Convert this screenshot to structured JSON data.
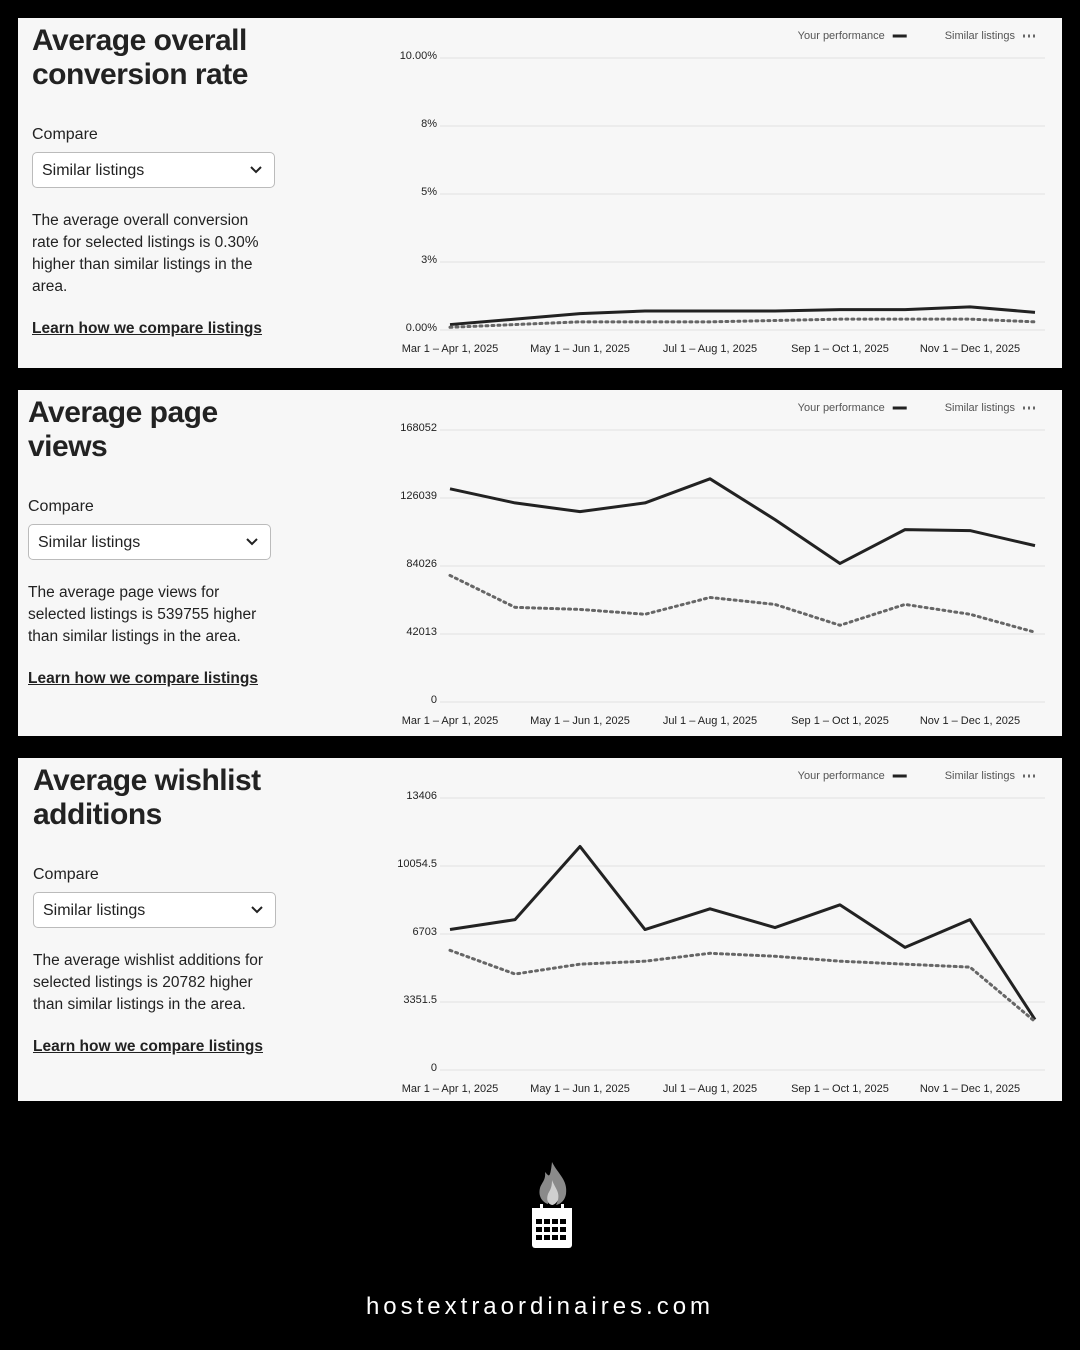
{
  "panels": [
    {
      "title": "Average overall conversion rate",
      "compare_label": "Compare",
      "select_value": "Similar listings",
      "description": "The average overall conversion rate for selected listings is 0.30% higher than similar listings in the area.",
      "link": "Learn how we compare listings"
    },
    {
      "title": "Average page views",
      "compare_label": "Compare",
      "select_value": "Similar listings",
      "description": "The average page views for selected listings is 539755 higher than similar listings in the area.",
      "link": "Learn how we compare listings"
    },
    {
      "title": "Average wishlist additions",
      "compare_label": "Compare",
      "select_value": "Similar listings",
      "description": "The average wishlist additions for selected listings is 20782 higher than similar listings in the area.",
      "link": "Learn how we compare listings"
    }
  ],
  "chart_data": [
    {
      "type": "line",
      "legend": "top-right",
      "grid": true,
      "categories": [
        "Mar 1 – Apr 1, 2025",
        null,
        "May 1 – Jun 1, 2025",
        null,
        "Jul 1 – Aug 1, 2025",
        null,
        "Sep 1 – Oct 1, 2025",
        null,
        "Nov 1 – Dec 1, 2025",
        null
      ],
      "series": [
        {
          "name": "Your performance",
          "color": "#222222",
          "line_style": "solid",
          "values": [
            0.2,
            0.4,
            0.6,
            0.7,
            0.7,
            0.7,
            0.75,
            0.75,
            0.85,
            0.65
          ]
        },
        {
          "name": "Similar listings",
          "color": "#666666",
          "line_style": "dotted",
          "values": [
            0.1,
            0.2,
            0.3,
            0.3,
            0.3,
            0.35,
            0.4,
            0.4,
            0.4,
            0.3
          ]
        }
      ],
      "ylim": [
        0,
        10
      ],
      "yticks": [
        {
          "value": 0,
          "label": "0.00%"
        },
        {
          "value": 2.5,
          "label": "3%"
        },
        {
          "value": 5,
          "label": "5%"
        },
        {
          "value": 7.5,
          "label": "8%"
        },
        {
          "value": 10,
          "label": "10.00%"
        }
      ]
    },
    {
      "type": "line",
      "legend": "top-right",
      "grid": true,
      "categories": [
        "Mar 1 – Apr 1, 2025",
        null,
        "May 1 – Jun 1, 2025",
        null,
        "Jul 1 – Aug 1, 2025",
        null,
        "Sep 1 – Oct 1, 2025",
        null,
        "Nov 1 – Dec 1, 2025",
        null
      ],
      "series": [
        {
          "name": "Your performance",
          "color": "#222222",
          "line_style": "solid",
          "values": [
            131700,
            123000,
            117600,
            123000,
            137900,
            112700,
            85600,
            106500,
            105900,
            96600
          ]
        },
        {
          "name": "Similar listings",
          "color": "#666666",
          "line_style": "dotted",
          "values": [
            78200,
            58500,
            57200,
            54200,
            64600,
            60300,
            47400,
            60300,
            54200,
            43100
          ]
        }
      ],
      "ylim": [
        0,
        168052
      ],
      "yticks": [
        0,
        42013,
        84026,
        126039,
        168052
      ]
    },
    {
      "type": "line",
      "legend": "top-right",
      "grid": true,
      "categories": [
        "Mar 1 – Apr 1, 2025",
        null,
        "May 1 – Jun 1, 2025",
        null,
        "Jul 1 – Aug 1, 2025",
        null,
        "Sep 1 – Oct 1, 2025",
        null,
        "Nov 1 – Dec 1, 2025",
        null
      ],
      "series": [
        {
          "name": "Your performance",
          "color": "#222222",
          "line_style": "solid",
          "values": [
            6923,
            7410,
            11018,
            6923,
            7946,
            7020,
            8141,
            6045,
            7410,
            2486
          ]
        },
        {
          "name": "Similar listings",
          "color": "#666666",
          "line_style": "dotted",
          "values": [
            5899,
            4729,
            5216,
            5363,
            5753,
            5606,
            5363,
            5216,
            5070,
            2389
          ]
        }
      ],
      "ylim": [
        0,
        13406
      ],
      "yticks": [
        0,
        3351.5,
        6703,
        10054.5,
        13406
      ]
    }
  ],
  "footer": {
    "website": "hostextraordinaires.com"
  }
}
